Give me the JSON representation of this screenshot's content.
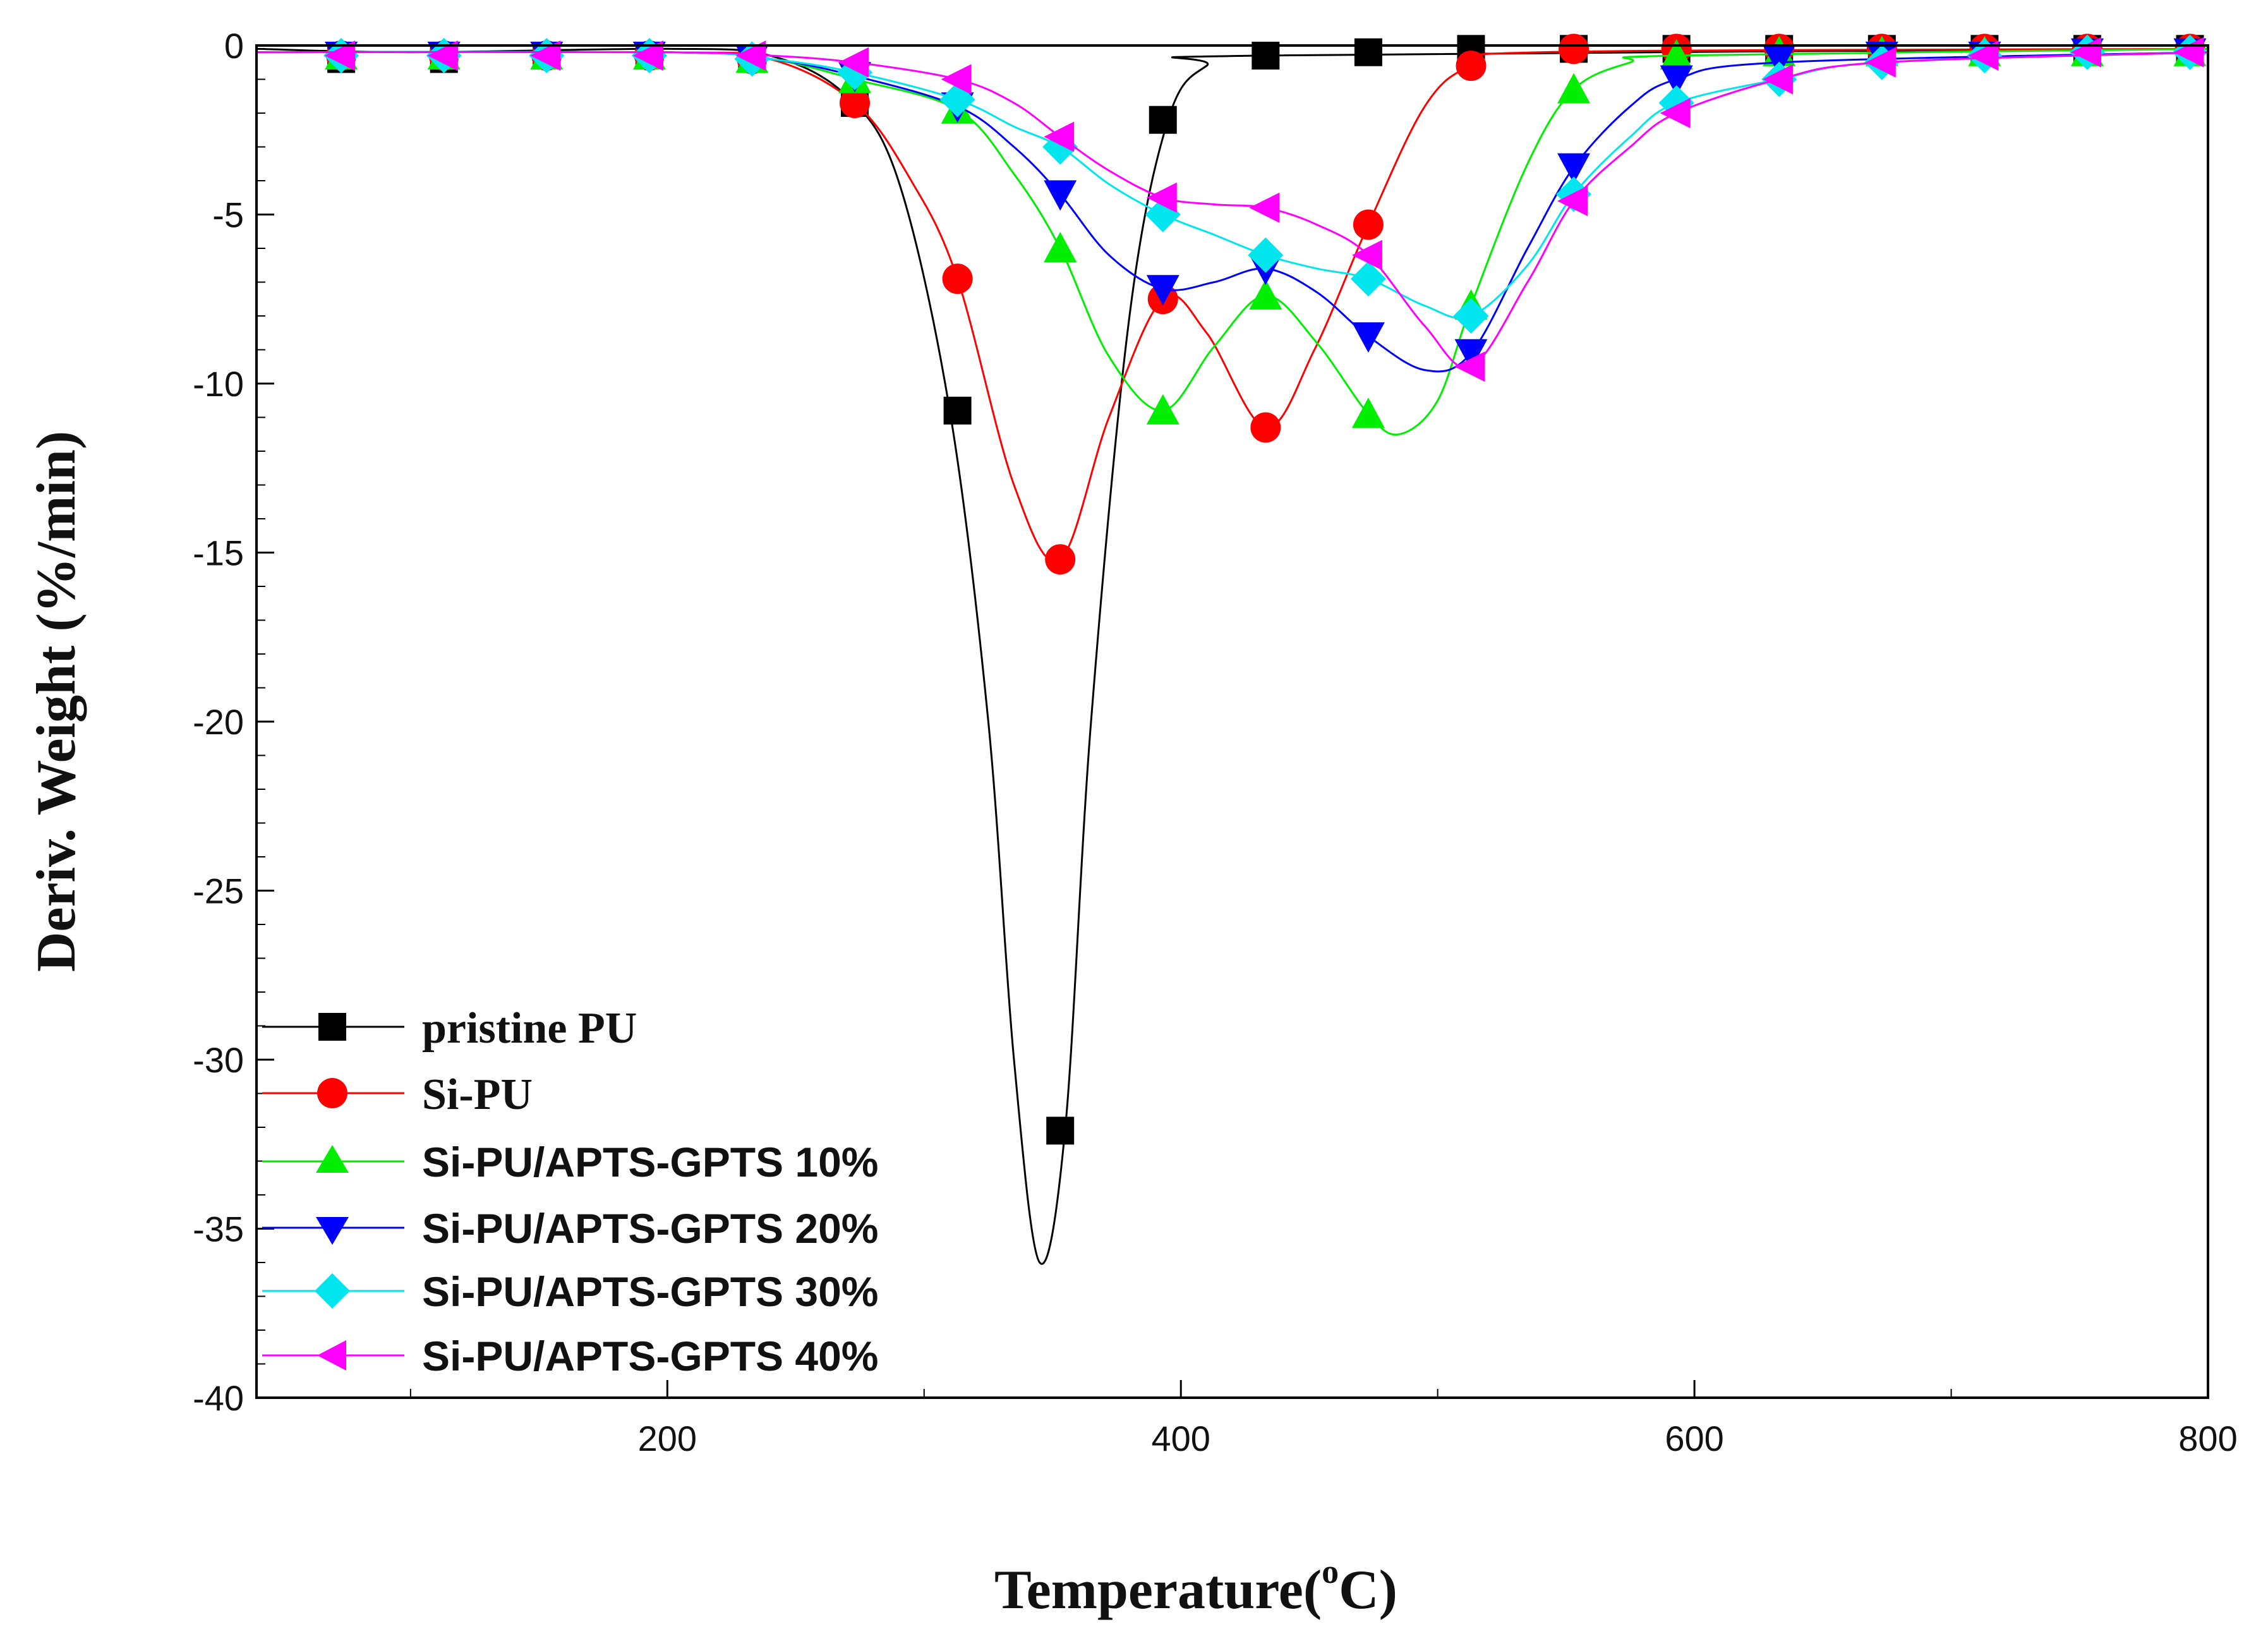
{
  "chart_data": {
    "type": "line",
    "title": "",
    "xlabel": "Temperature(",
    "xlabel_superscript": "o",
    "xlabel_suffix": "C)",
    "ylabel": "Deriv. Weight (%/min)",
    "xlim": [
      40,
      800
    ],
    "ylim": [
      -40,
      0
    ],
    "xticks": [
      200,
      400,
      600,
      800
    ],
    "yticks": [
      0,
      -5,
      -10,
      -15,
      -20,
      -25,
      -30,
      -35,
      -40
    ],
    "xtick_labels": [
      "200",
      "400",
      "600",
      "800"
    ],
    "ytick_labels": [
      "0",
      "-5",
      "-10",
      "-15",
      "-20",
      "-25",
      "-30",
      "-35",
      "-40"
    ],
    "legend_position": "bottom-left",
    "series": [
      {
        "name": "pristine PU",
        "color": "#000000",
        "marker": "square",
        "curve": [
          [
            40,
            -0.1
          ],
          [
            100,
            -0.2
          ],
          [
            200,
            -0.1
          ],
          [
            240,
            -0.3
          ],
          [
            270,
            -1.5
          ],
          [
            290,
            -4
          ],
          [
            310,
            -10.8
          ],
          [
            325,
            -20
          ],
          [
            335,
            -30
          ],
          [
            345,
            -36
          ],
          [
            355,
            -32
          ],
          [
            365,
            -20
          ],
          [
            380,
            -8
          ],
          [
            395,
            -2.2
          ],
          [
            410,
            -0.6
          ],
          [
            430,
            -0.3
          ],
          [
            800,
            -0.1
          ]
        ],
        "markers": [
          [
            73,
            -0.4
          ],
          [
            113,
            -0.4
          ],
          [
            153,
            -0.3
          ],
          [
            193,
            -0.3
          ],
          [
            233,
            -0.4
          ],
          [
            273,
            -1.7
          ],
          [
            313,
            -10.8
          ],
          [
            353,
            -32.1
          ],
          [
            393,
            -2.2
          ],
          [
            433,
            -0.3
          ],
          [
            473,
            -0.2
          ],
          [
            513,
            -0.1
          ],
          [
            553,
            -0.1
          ],
          [
            593,
            -0.1
          ],
          [
            633,
            -0.1
          ],
          [
            673,
            -0.1
          ],
          [
            713,
            -0.1
          ],
          [
            753,
            -0.1
          ],
          [
            793,
            -0.1
          ]
        ]
      },
      {
        "name": "Si-PU",
        "color": "#ff0000",
        "marker": "circle",
        "curve": [
          [
            40,
            -0.2
          ],
          [
            200,
            -0.2
          ],
          [
            240,
            -0.4
          ],
          [
            273,
            -1.7
          ],
          [
            295,
            -4
          ],
          [
            313,
            -6.9
          ],
          [
            335,
            -13
          ],
          [
            353,
            -15.2
          ],
          [
            372,
            -11
          ],
          [
            393,
            -7.5
          ],
          [
            410,
            -8.5
          ],
          [
            433,
            -11.3
          ],
          [
            452,
            -9
          ],
          [
            473,
            -5.3
          ],
          [
            495,
            -1.8
          ],
          [
            513,
            -0.6
          ],
          [
            540,
            -0.2
          ],
          [
            800,
            -0.1
          ]
        ],
        "markers": [
          [
            73,
            -0.3
          ],
          [
            113,
            -0.3
          ],
          [
            153,
            -0.3
          ],
          [
            193,
            -0.3
          ],
          [
            233,
            -0.4
          ],
          [
            273,
            -1.7
          ],
          [
            313,
            -6.9
          ],
          [
            353,
            -15.2
          ],
          [
            393,
            -7.5
          ],
          [
            433,
            -11.3
          ],
          [
            473,
            -5.3
          ],
          [
            513,
            -0.6
          ],
          [
            553,
            -0.1
          ],
          [
            593,
            -0.1
          ],
          [
            633,
            -0.1
          ],
          [
            673,
            -0.1
          ],
          [
            713,
            -0.1
          ],
          [
            753,
            -0.1
          ],
          [
            793,
            -0.1
          ]
        ]
      },
      {
        "name": "Si-PU/APTS-GPTS 10%",
        "color": "#00ee00",
        "marker": "triangle-up",
        "curve": [
          [
            40,
            -0.2
          ],
          [
            200,
            -0.2
          ],
          [
            240,
            -0.4
          ],
          [
            273,
            -1.0
          ],
          [
            313,
            -1.9
          ],
          [
            335,
            -3.8
          ],
          [
            353,
            -6.0
          ],
          [
            372,
            -9.2
          ],
          [
            393,
            -10.8
          ],
          [
            413,
            -8.9
          ],
          [
            433,
            -7.4
          ],
          [
            453,
            -8.8
          ],
          [
            473,
            -10.9
          ],
          [
            485,
            -11.5
          ],
          [
            500,
            -10.5
          ],
          [
            513,
            -7.7
          ],
          [
            535,
            -3.5
          ],
          [
            553,
            -1.3
          ],
          [
            575,
            -0.5
          ],
          [
            593,
            -0.3
          ],
          [
            800,
            -0.1
          ]
        ],
        "markers": [
          [
            73,
            -0.3
          ],
          [
            113,
            -0.3
          ],
          [
            153,
            -0.3
          ],
          [
            193,
            -0.3
          ],
          [
            233,
            -0.4
          ],
          [
            273,
            -1.0
          ],
          [
            313,
            -1.9
          ],
          [
            353,
            -6.0
          ],
          [
            393,
            -10.8
          ],
          [
            433,
            -7.4
          ],
          [
            473,
            -10.9
          ],
          [
            513,
            -7.7
          ],
          [
            553,
            -1.3
          ],
          [
            593,
            -0.3
          ],
          [
            633,
            -0.2
          ],
          [
            673,
            -0.2
          ],
          [
            713,
            -0.2
          ],
          [
            753,
            -0.2
          ],
          [
            793,
            -0.2
          ]
        ]
      },
      {
        "name": "Si-PU/APTS-GPTS 20%",
        "color": "#0000ff",
        "marker": "triangle-down",
        "curve": [
          [
            40,
            -0.2
          ],
          [
            200,
            -0.2
          ],
          [
            240,
            -0.4
          ],
          [
            273,
            -0.9
          ],
          [
            313,
            -1.8
          ],
          [
            335,
            -3
          ],
          [
            353,
            -4.4
          ],
          [
            372,
            -6.2
          ],
          [
            393,
            -7.2
          ],
          [
            413,
            -7.0
          ],
          [
            433,
            -6.6
          ],
          [
            453,
            -7.3
          ],
          [
            473,
            -8.6
          ],
          [
            495,
            -9.6
          ],
          [
            513,
            -9.1
          ],
          [
            535,
            -6
          ],
          [
            553,
            -3.6
          ],
          [
            575,
            -1.8
          ],
          [
            593,
            -1.0
          ],
          [
            633,
            -0.5
          ],
          [
            800,
            -0.2
          ]
        ],
        "markers": [
          [
            73,
            -0.3
          ],
          [
            113,
            -0.3
          ],
          [
            153,
            -0.3
          ],
          [
            193,
            -0.3
          ],
          [
            233,
            -0.4
          ],
          [
            273,
            -0.9
          ],
          [
            313,
            -1.8
          ],
          [
            353,
            -4.4
          ],
          [
            393,
            -7.2
          ],
          [
            433,
            -6.6
          ],
          [
            473,
            -8.6
          ],
          [
            513,
            -9.1
          ],
          [
            553,
            -3.6
          ],
          [
            593,
            -1.0
          ],
          [
            633,
            -0.4
          ],
          [
            673,
            -0.3
          ],
          [
            713,
            -0.3
          ],
          [
            753,
            -0.2
          ],
          [
            793,
            -0.2
          ]
        ]
      },
      {
        "name": "Si-PU/APTS-GPTS 30%",
        "color": "#00e5ee",
        "marker": "diamond",
        "curve": [
          [
            40,
            -0.2
          ],
          [
            200,
            -0.2
          ],
          [
            240,
            -0.4
          ],
          [
            273,
            -0.8
          ],
          [
            313,
            -1.6
          ],
          [
            335,
            -2.4
          ],
          [
            353,
            -3.0
          ],
          [
            372,
            -4.1
          ],
          [
            393,
            -5.0
          ],
          [
            413,
            -5.6
          ],
          [
            433,
            -6.2
          ],
          [
            453,
            -6.6
          ],
          [
            473,
            -6.9
          ],
          [
            495,
            -7.7
          ],
          [
            513,
            -8.0
          ],
          [
            535,
            -6.5
          ],
          [
            553,
            -4.4
          ],
          [
            575,
            -2.7
          ],
          [
            593,
            -1.7
          ],
          [
            633,
            -1.0
          ],
          [
            673,
            -0.5
          ],
          [
            800,
            -0.2
          ]
        ],
        "markers": [
          [
            73,
            -0.3
          ],
          [
            113,
            -0.3
          ],
          [
            153,
            -0.3
          ],
          [
            193,
            -0.3
          ],
          [
            233,
            -0.4
          ],
          [
            273,
            -0.8
          ],
          [
            313,
            -1.6
          ],
          [
            353,
            -3.0
          ],
          [
            393,
            -5.0
          ],
          [
            433,
            -6.2
          ],
          [
            473,
            -6.9
          ],
          [
            513,
            -8.0
          ],
          [
            553,
            -4.4
          ],
          [
            593,
            -1.7
          ],
          [
            633,
            -1.0
          ],
          [
            673,
            -0.5
          ],
          [
            713,
            -0.3
          ],
          [
            753,
            -0.2
          ],
          [
            793,
            -0.2
          ]
        ]
      },
      {
        "name": "Si-PU/APTS-GPTS 40%",
        "color": "#ff00ff",
        "marker": "triangle-left",
        "curve": [
          [
            40,
            -0.2
          ],
          [
            200,
            -0.2
          ],
          [
            240,
            -0.3
          ],
          [
            273,
            -0.5
          ],
          [
            313,
            -1.0
          ],
          [
            335,
            -1.7
          ],
          [
            353,
            -2.7
          ],
          [
            372,
            -3.7
          ],
          [
            393,
            -4.5
          ],
          [
            413,
            -4.7
          ],
          [
            433,
            -4.8
          ],
          [
            453,
            -5.3
          ],
          [
            473,
            -6.2
          ],
          [
            495,
            -8.3
          ],
          [
            513,
            -9.5
          ],
          [
            535,
            -7.0
          ],
          [
            553,
            -4.6
          ],
          [
            575,
            -3.0
          ],
          [
            593,
            -2.0
          ],
          [
            633,
            -1.0
          ],
          [
            673,
            -0.5
          ],
          [
            800,
            -0.2
          ]
        ],
        "markers": [
          [
            73,
            -0.3
          ],
          [
            113,
            -0.3
          ],
          [
            153,
            -0.3
          ],
          [
            193,
            -0.3
          ],
          [
            233,
            -0.3
          ],
          [
            273,
            -0.5
          ],
          [
            313,
            -1.0
          ],
          [
            353,
            -2.7
          ],
          [
            393,
            -4.5
          ],
          [
            433,
            -4.8
          ],
          [
            473,
            -6.2
          ],
          [
            513,
            -9.5
          ],
          [
            553,
            -4.6
          ],
          [
            593,
            -2.0
          ],
          [
            633,
            -1.0
          ],
          [
            673,
            -0.5
          ],
          [
            713,
            -0.3
          ],
          [
            753,
            -0.2
          ],
          [
            793,
            -0.2
          ]
        ]
      }
    ]
  }
}
